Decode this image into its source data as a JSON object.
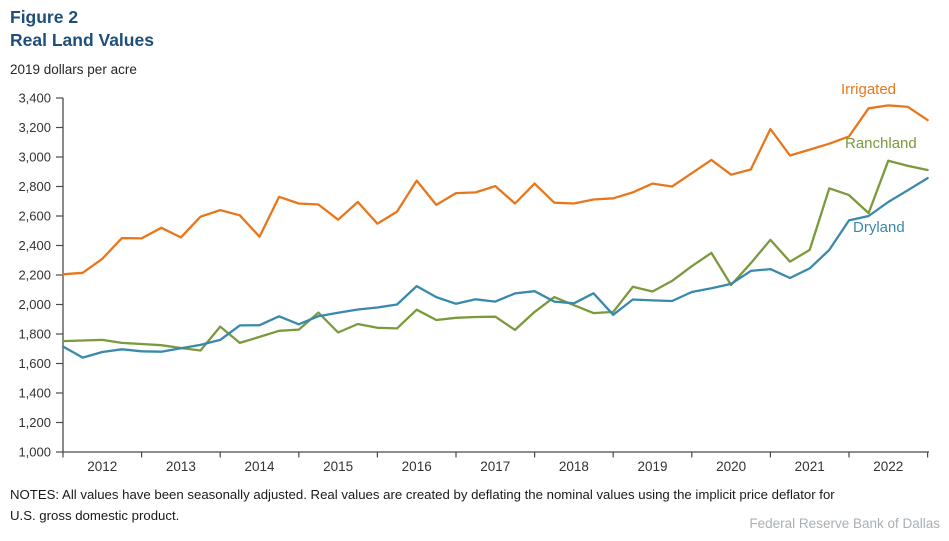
{
  "header": {
    "figure_label": "Figure 2",
    "title": "Real Land Values",
    "units": "2019 dollars per acre"
  },
  "footer": {
    "notes_line1": "NOTES: All values have been seasonally adjusted. Real values are created by deflating the nominal values using the implicit price deflator for",
    "notes_line2": "U.S. gross domestic product.",
    "source": "Federal Reserve Bank of Dallas"
  },
  "colors": {
    "title_navy": "#1e4e7c",
    "irrigated": "#e8771c",
    "ranchland": "#7a9a3c",
    "dryland": "#3989ab",
    "axis_line": "#4a4a4a",
    "tick_text": "#333333",
    "source_text": "#a9afb4"
  },
  "chart_data": {
    "type": "line",
    "title": "Real Land Values",
    "ylabel": "2019 dollars per acre",
    "ylim": [
      1000,
      3400
    ],
    "ytick_step": 200,
    "grid": "off",
    "legend_position": "line-end labels at right",
    "x_tick_labels": [
      "2012",
      "2013",
      "2014",
      "2015",
      "2016",
      "2017",
      "2018",
      "2019",
      "2020",
      "2021",
      "2022"
    ],
    "quarters": [
      "2011 Q4",
      "2012 Q1",
      "2012 Q2",
      "2012 Q3",
      "2012 Q4",
      "2013 Q1",
      "2013 Q2",
      "2013 Q3",
      "2013 Q4",
      "2014 Q1",
      "2014 Q2",
      "2014 Q3",
      "2014 Q4",
      "2015 Q1",
      "2015 Q2",
      "2015 Q3",
      "2015 Q4",
      "2016 Q1",
      "2016 Q2",
      "2016 Q3",
      "2016 Q4",
      "2017 Q1",
      "2017 Q2",
      "2017 Q3",
      "2017 Q4",
      "2018 Q1",
      "2018 Q2",
      "2018 Q3",
      "2018 Q4",
      "2019 Q1",
      "2019 Q2",
      "2019 Q3",
      "2019 Q4",
      "2020 Q1",
      "2020 Q2",
      "2020 Q3",
      "2020 Q4",
      "2021 Q1",
      "2021 Q2",
      "2021 Q3",
      "2021 Q4",
      "2022 Q1",
      "2022 Q2",
      "2022 Q3",
      "2022 Q4"
    ],
    "series": [
      {
        "name": "Irrigated",
        "color": "#e8771c",
        "values": [
          2205,
          2215,
          2310,
          2450,
          2448,
          2520,
          2455,
          2595,
          2640,
          2605,
          2460,
          2730,
          2685,
          2678,
          2575,
          2695,
          2548,
          2630,
          2840,
          2675,
          2755,
          2760,
          2803,
          2685,
          2820,
          2690,
          2685,
          2712,
          2720,
          2760,
          2820,
          2800,
          2890,
          2980,
          2880,
          2915,
          3190,
          3010,
          3050,
          3090,
          3140,
          3330,
          3350,
          3340,
          3250
        ]
      },
      {
        "name": "Ranchland",
        "color": "#7a9a3c",
        "values": [
          1752,
          1756,
          1760,
          1740,
          1732,
          1724,
          1705,
          1688,
          1850,
          1740,
          1780,
          1822,
          1830,
          1945,
          1810,
          1868,
          1842,
          1838,
          1965,
          1895,
          1910,
          1915,
          1917,
          1828,
          1950,
          2050,
          1995,
          1942,
          1950,
          2120,
          2088,
          2160,
          2260,
          2350,
          2132,
          2280,
          2438,
          2290,
          2370,
          2788,
          2742,
          2620,
          2975,
          2940,
          2912
        ]
      },
      {
        "name": "Dryland",
        "color": "#3989ab",
        "values": [
          1715,
          1640,
          1678,
          1696,
          1683,
          1680,
          1703,
          1726,
          1760,
          1858,
          1860,
          1920,
          1866,
          1921,
          1944,
          1966,
          1980,
          2000,
          2125,
          2050,
          2005,
          2035,
          2020,
          2075,
          2090,
          2020,
          2008,
          2076,
          1930,
          2034,
          2028,
          2024,
          2085,
          2110,
          2140,
          2228,
          2240,
          2180,
          2245,
          2370,
          2570,
          2600,
          2695,
          2775,
          2857
        ]
      }
    ]
  }
}
